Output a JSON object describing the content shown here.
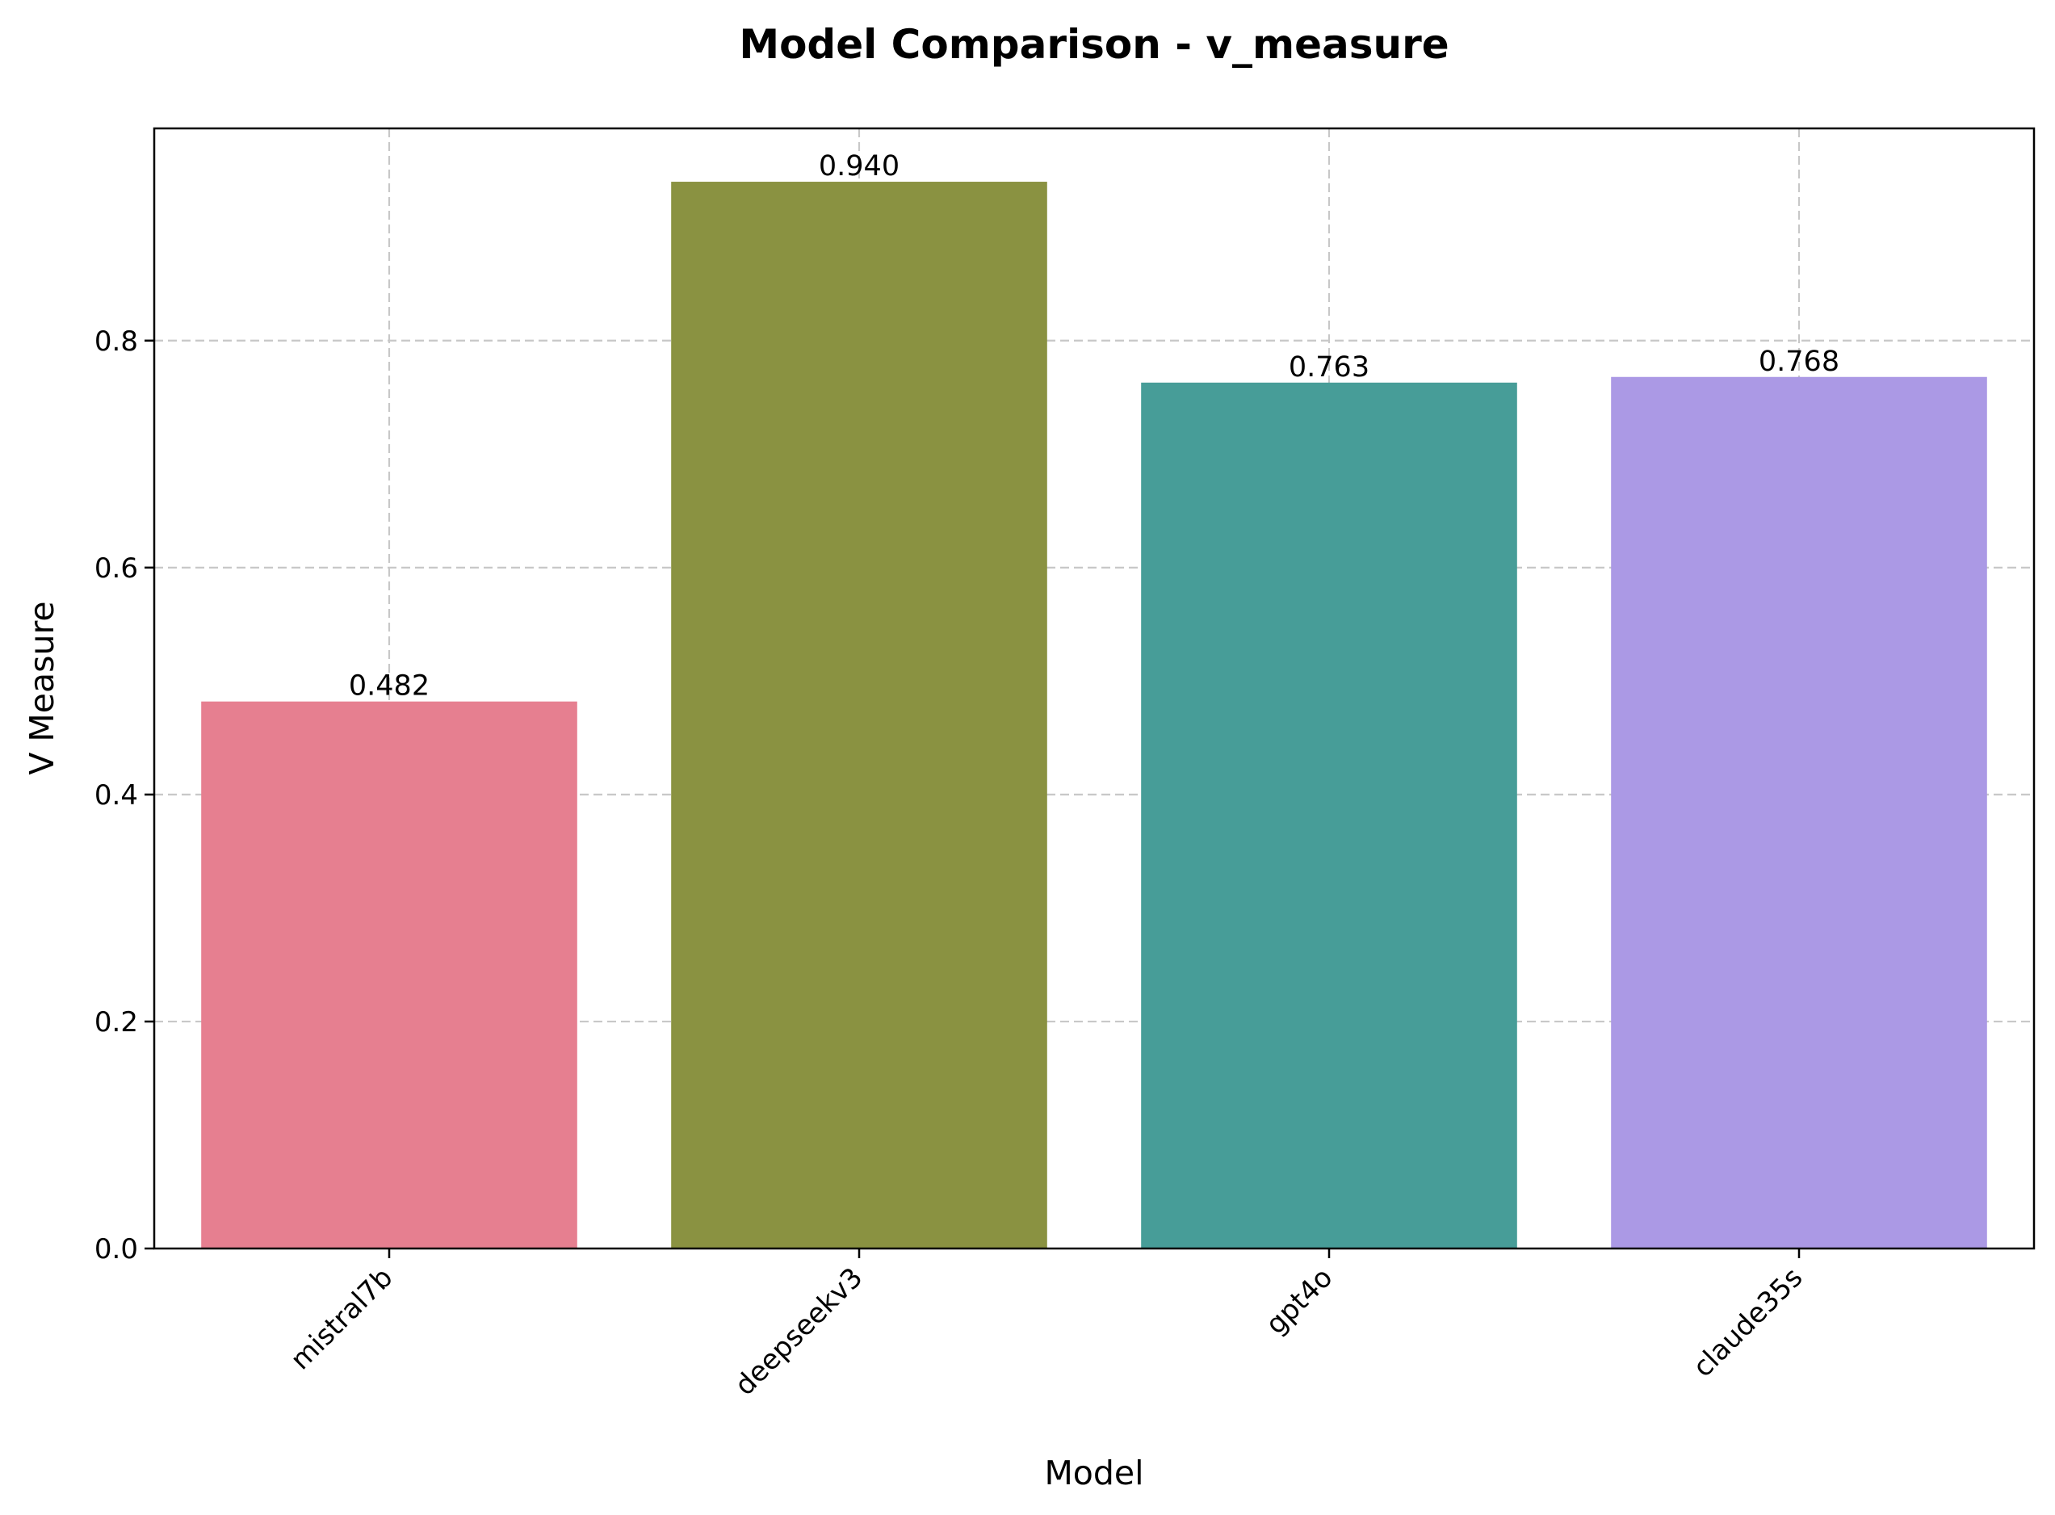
{
  "chart_data": {
    "type": "bar",
    "title": "Model Comparison - v_measure",
    "xlabel": "Model",
    "ylabel": "V Measure",
    "categories": [
      "mistral7b",
      "deepseekv3",
      "gpt4o",
      "claude35s"
    ],
    "values": [
      0.482,
      0.94,
      0.763,
      0.768
    ],
    "value_labels": [
      "0.482",
      "0.940",
      "0.763",
      "0.768"
    ],
    "colors": [
      "#e67f90",
      "#8a9241",
      "#479d98",
      "#ab99e5"
    ],
    "ylim": [
      0,
      0.987
    ],
    "yticks": [
      0.0,
      0.2,
      0.4,
      0.6,
      0.8
    ],
    "ytick_labels": [
      "0.0",
      "0.2",
      "0.4",
      "0.6",
      "0.8"
    ],
    "grid": true,
    "legend": false
  }
}
